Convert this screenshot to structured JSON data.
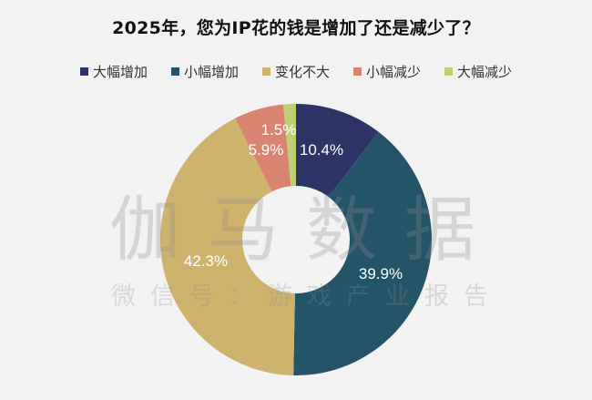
{
  "title": "2025年，您为IP花的钱是增加了还是减少了？",
  "legend": [
    {
      "label": "大幅增加",
      "color": "#2E3566"
    },
    {
      "label": "小幅增加",
      "color": "#245468"
    },
    {
      "label": "变化不大",
      "color": "#CEB36E"
    },
    {
      "label": "小幅减少",
      "color": "#D88471"
    },
    {
      "label": "大幅减少",
      "color": "#BED072"
    }
  ],
  "watermark": {
    "main": "伽马数据",
    "sub": "微信号：游戏产业报告"
  },
  "labels": {
    "l0": "10.4%",
    "l1": "39.9%",
    "l2": "42.3%",
    "l3": "5.9%",
    "l4": "1.5%"
  },
  "chart_data": {
    "type": "pie",
    "subtype": "donut",
    "title": "2025年，您为IP花的钱是增加了还是减少了？",
    "categories": [
      "大幅增加",
      "小幅增加",
      "变化不大",
      "小幅减少",
      "大幅减少"
    ],
    "values": [
      10.4,
      39.9,
      42.3,
      5.9,
      1.5
    ],
    "unit": "%",
    "colors": [
      "#2E3566",
      "#245468",
      "#CEB36E",
      "#D88471",
      "#BED072"
    ],
    "start_angle": "12 o'clock",
    "direction": "clockwise",
    "legend_position": "top",
    "data_labels": true
  }
}
